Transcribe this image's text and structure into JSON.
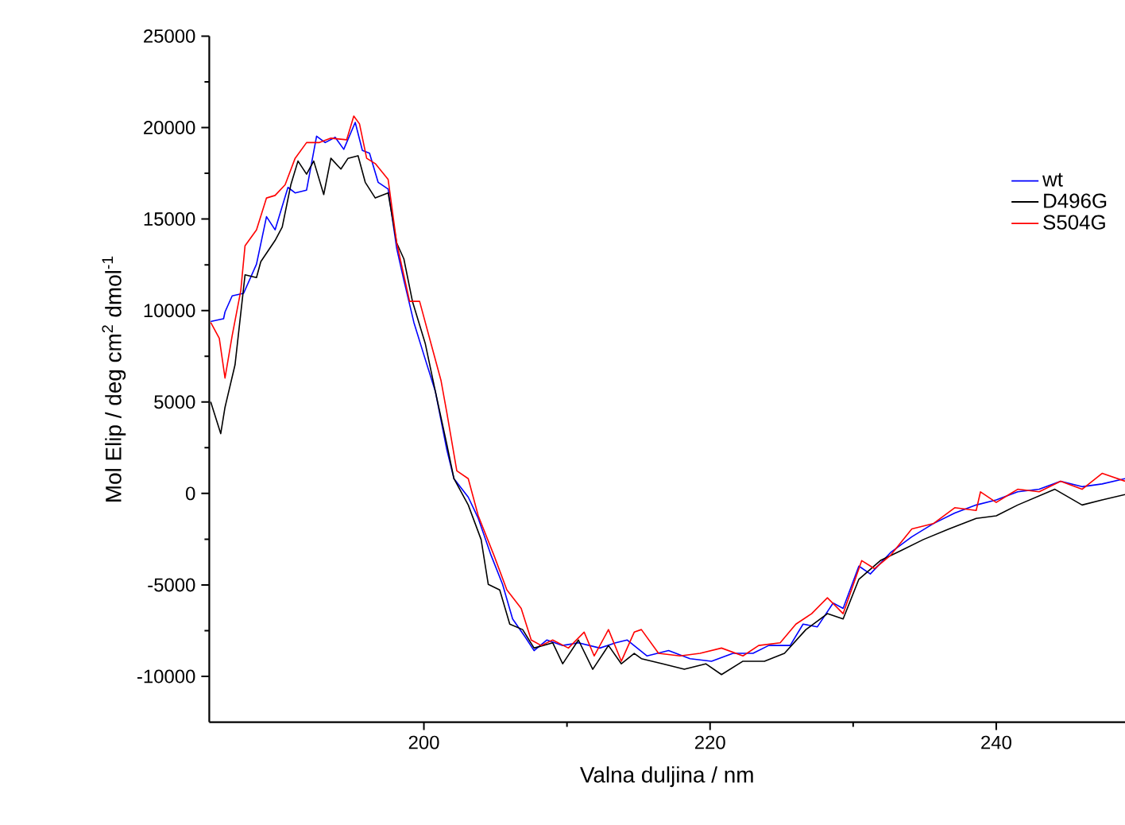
{
  "chart_data": {
    "type": "line",
    "xlabel": "Valna duljina / nm",
    "ylabel": "Mol Elip / deg cm$^{2}$ dmol$^{-1}$",
    "xlim": [
      185,
      249
    ],
    "ylim": [
      -12500,
      25000
    ],
    "xticks": [
      200,
      220,
      240
    ],
    "yticks": [
      -10000,
      -5000,
      0,
      5000,
      10000,
      15000,
      20000,
      25000
    ],
    "legend": "top right",
    "grid": false,
    "marker": "none",
    "line_style": "solid",
    "series": [
      {
        "name": "wt",
        "color": "#0000ff",
        "x": [
          185.1,
          186.0,
          186.1,
          186.6,
          187.4,
          188.3,
          189.0,
          189.6,
          190.5,
          191.0,
          191.8,
          192.5,
          193.1,
          193.8,
          194.4,
          195.2,
          195.7,
          196.2,
          196.8,
          197.5,
          198.1,
          198.6,
          199.3,
          200.1,
          200.8,
          201.6,
          202.1,
          203.1,
          203.8,
          204.7,
          205.5,
          206.2,
          207.1,
          207.7,
          208.6,
          209.7,
          210.8,
          212.3,
          213.4,
          214.2,
          215.6,
          217.1,
          218.6,
          220.1,
          221.6,
          223.0,
          224.1,
          225.6,
          226.5,
          227.5,
          228.6,
          229.3,
          230.4,
          231.2,
          232.6,
          234.1,
          235.6,
          237.1,
          238.6,
          240.0,
          241.5,
          243.0,
          244.5,
          246.0,
          247.4,
          249.0
        ],
        "values": [
          9400,
          9550,
          9920,
          10800,
          10940,
          12530,
          15130,
          14410,
          16730,
          16430,
          16580,
          19530,
          19180,
          19470,
          18810,
          20280,
          18750,
          18600,
          17010,
          16640,
          13390,
          11660,
          9350,
          7320,
          5580,
          2400,
          810,
          -200,
          -1360,
          -3390,
          -4970,
          -6860,
          -7870,
          -8590,
          -8010,
          -8310,
          -8160,
          -8450,
          -8160,
          -8010,
          -8880,
          -8590,
          -9030,
          -9170,
          -8740,
          -8740,
          -8310,
          -8310,
          -7140,
          -7290,
          -5990,
          -6280,
          -3970,
          -4400,
          -3240,
          -2370,
          -1650,
          -1070,
          -630,
          -350,
          90,
          230,
          670,
          370,
          520,
          810
        ]
      },
      {
        "name": "D496G",
        "color": "#000000",
        "x": [
          185.1,
          185.8,
          186.1,
          186.8,
          187.5,
          188.3,
          188.6,
          189.6,
          190.1,
          190.7,
          191.2,
          191.8,
          192.3,
          193.0,
          193.5,
          194.2,
          194.7,
          195.4,
          195.9,
          196.6,
          197.5,
          198.1,
          198.6,
          199.2,
          200.1,
          200.8,
          201.6,
          202.1,
          203.1,
          204.0,
          204.5,
          205.3,
          206.0,
          206.9,
          207.7,
          209.0,
          209.7,
          210.8,
          211.8,
          212.9,
          213.8,
          214.7,
          215.2,
          216.7,
          218.2,
          219.7,
          220.8,
          222.3,
          223.8,
          225.2,
          226.7,
          228.2,
          229.3,
          230.4,
          231.9,
          233.4,
          234.9,
          236.7,
          238.6,
          240.0,
          241.5,
          244.1,
          246.0,
          247.4,
          249.0
        ],
        "values": [
          5010,
          3270,
          4710,
          7030,
          11950,
          11800,
          12670,
          13830,
          14560,
          16870,
          18170,
          17450,
          18170,
          16340,
          18320,
          17730,
          18320,
          18460,
          17010,
          16150,
          16430,
          13690,
          12820,
          10500,
          8180,
          5580,
          2690,
          810,
          -630,
          -2520,
          -4970,
          -5270,
          -7140,
          -7440,
          -8450,
          -8160,
          -9310,
          -8010,
          -9610,
          -8310,
          -9310,
          -8740,
          -9030,
          -9310,
          -9610,
          -9310,
          -9900,
          -9170,
          -9170,
          -8740,
          -7440,
          -6570,
          -6860,
          -4690,
          -3670,
          -3100,
          -2520,
          -1940,
          -1360,
          -1220,
          -630,
          230,
          -630,
          -350,
          -60
        ]
      },
      {
        "name": "S504G",
        "color": "#ff0000",
        "x": [
          185.1,
          185.7,
          186.1,
          186.6,
          187.2,
          187.5,
          188.3,
          189.0,
          189.6,
          190.3,
          191.0,
          191.8,
          192.7,
          193.5,
          194.6,
          195.1,
          195.5,
          196.0,
          196.6,
          197.5,
          198.1,
          199.0,
          199.7,
          200.5,
          201.2,
          201.6,
          202.3,
          203.1,
          203.8,
          204.9,
          205.8,
          206.8,
          207.5,
          208.2,
          209.0,
          210.1,
          211.2,
          211.9,
          212.9,
          213.8,
          214.7,
          215.2,
          216.4,
          217.9,
          219.3,
          220.8,
          222.3,
          223.4,
          224.9,
          226.0,
          227.1,
          228.2,
          229.3,
          230.6,
          231.5,
          232.6,
          234.1,
          235.6,
          237.1,
          238.6,
          238.9,
          240.0,
          241.5,
          243.0,
          244.5,
          246.0,
          247.4,
          249.0
        ],
        "values": [
          9350,
          8480,
          6310,
          8620,
          11080,
          13540,
          14410,
          16150,
          16290,
          16870,
          18320,
          19180,
          19180,
          19420,
          19330,
          20630,
          20200,
          18320,
          18030,
          17160,
          13690,
          10500,
          10500,
          8180,
          6160,
          4430,
          1240,
          810,
          -1220,
          -3390,
          -5270,
          -6280,
          -8010,
          -8310,
          -8010,
          -8450,
          -7580,
          -8880,
          -7440,
          -9170,
          -7580,
          -7440,
          -8740,
          -8880,
          -8740,
          -8450,
          -8880,
          -8310,
          -8160,
          -7140,
          -6570,
          -5700,
          -6570,
          -3670,
          -4110,
          -3390,
          -1940,
          -1650,
          -780,
          -930,
          90,
          -490,
          230,
          90,
          670,
          230,
          1100,
          670
        ]
      }
    ]
  }
}
